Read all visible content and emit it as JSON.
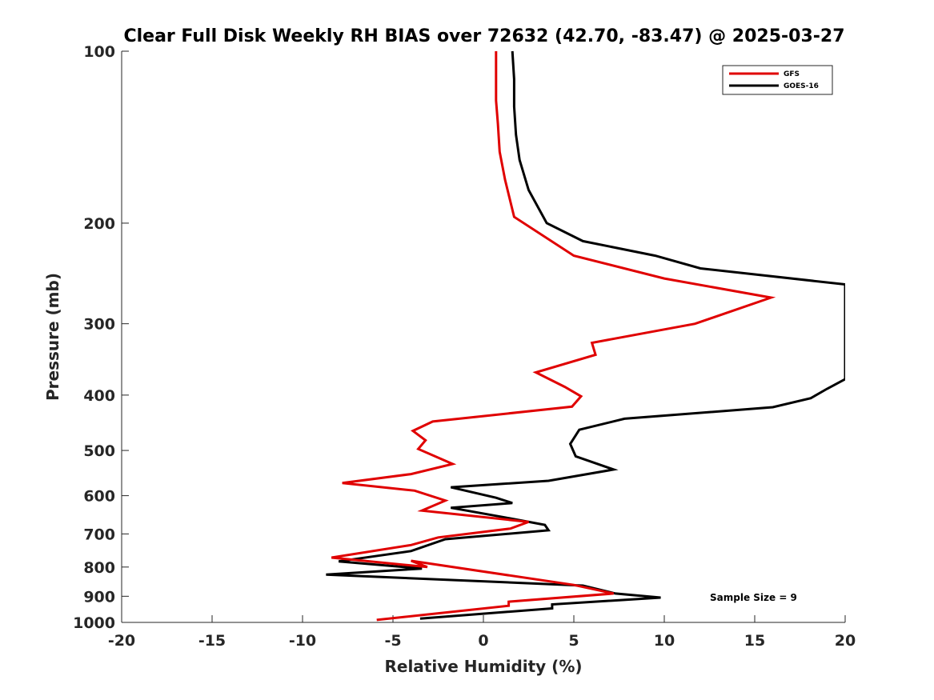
{
  "chart_data": {
    "type": "line",
    "title": "Clear Full Disk Weekly RH BIAS over 72632 (42.70, -83.47) @ 2025-03-27",
    "xlabel": "Relative Humidity (%)",
    "ylabel": "Pressure (mb)",
    "xlim": [
      -20,
      20
    ],
    "ylim": [
      100,
      1000
    ],
    "yscale": "log",
    "y_reversed": true,
    "xticks": [
      "-20",
      "-15",
      "-10",
      "-5",
      "0",
      "5",
      "10",
      "15",
      "20"
    ],
    "yticks": [
      "100",
      "200",
      "300",
      "400",
      "500",
      "600",
      "700",
      "800",
      "900",
      "1000"
    ],
    "grid": false,
    "legend_position": "top-right",
    "annotation": "Sample Size = 9",
    "series": [
      {
        "name": "GFS",
        "color": "#e00000",
        "x": [
          0.7,
          0.7,
          0.7,
          0.8,
          0.9,
          1.2,
          1.7,
          5.0,
          10.0,
          15.9,
          11.7,
          6.0,
          6.2,
          2.9,
          4.5,
          5.4,
          4.9,
          -2.8,
          -3.9,
          -3.2,
          -3.6,
          -1.7,
          -4.0,
          -7.8,
          -3.8,
          -2.1,
          -3.4,
          2.5,
          1.5,
          -2.5,
          -4.0,
          -8.4,
          -3.1,
          -4.0,
          5.0,
          7.2,
          1.4,
          1.4,
          -5.9
        ],
        "y": [
          100,
          110,
          122,
          134,
          150,
          168,
          195,
          228,
          250,
          270,
          300,
          324,
          340,
          365,
          387,
          402,
          419,
          445,
          462,
          480,
          497,
          528,
          550,
          570,
          588,
          612,
          637,
          667,
          685,
          710,
          732,
          770,
          800,
          780,
          860,
          890,
          920,
          935,
          990
        ]
      },
      {
        "name": "GOES-16",
        "color": "#000000",
        "x": [
          1.6,
          1.7,
          1.7,
          1.8,
          2.0,
          2.5,
          3.5,
          5.5,
          9.5,
          12.0,
          20.0,
          20.0,
          19.0,
          18.1,
          16.0,
          7.8,
          5.3,
          4.8,
          5.1,
          7.2,
          3.6,
          -1.8,
          0.7,
          1.6,
          -1.8,
          1.2,
          3.4,
          3.6,
          -2.1,
          -4.0,
          -8.0,
          -3.4,
          -8.7,
          5.5,
          7.3,
          9.8,
          3.8,
          3.8,
          -3.5
        ],
        "y": [
          100,
          112,
          125,
          140,
          155,
          175,
          200,
          215,
          228,
          240,
          256,
          375,
          390,
          405,
          420,
          440,
          460,
          487,
          512,
          540,
          565,
          580,
          605,
          618,
          630,
          655,
          675,
          690,
          715,
          750,
          782,
          805,
          825,
          862,
          890,
          905,
          930,
          945,
          985
        ]
      }
    ]
  }
}
